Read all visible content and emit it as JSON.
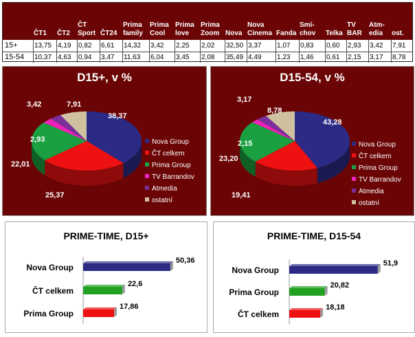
{
  "table": {
    "columns": [
      "ČT1",
      "ČT2",
      "ČT\nSport",
      "ČT24",
      "Prima\nfamily",
      "Prima\nCool",
      "Prima\nlove",
      "Prima\nZoom",
      "Nova",
      "Nova\nCinema",
      "Fanda",
      "Smí-\nchov",
      "Telka",
      "TV\nBAR",
      "Atm-\nedia",
      "ost."
    ],
    "rows": [
      {
        "label": "15+",
        "values": [
          "13,75",
          "4,19",
          "0,82",
          "6,61",
          "14,32",
          "3,42",
          "2,25",
          "2,02",
          "32,50",
          "3,37",
          "1,07",
          "0,83",
          "0,60",
          "2,93",
          "3,42",
          "7,91"
        ]
      },
      {
        "label": "15-54",
        "values": [
          "10,37",
          "4,63",
          "0,94",
          "3,47",
          "11,63",
          "6,04",
          "3,45",
          "2,08",
          "35,49",
          "4,49",
          "1,23",
          "1,46",
          "0,61",
          "2,15",
          "3,17",
          "8,78"
        ]
      }
    ]
  },
  "chart_data": [
    {
      "type": "pie",
      "title": "D15+, v %",
      "labels": [
        "Nova Group",
        "ČT celkem",
        "Prima Group",
        "TV Barrandov",
        "Atmedia",
        "ostatní"
      ],
      "values": [
        38.37,
        25.37,
        22.01,
        2.93,
        3.42,
        7.91
      ],
      "value_labels": [
        "38,37",
        "25,37",
        "22,01",
        "2,93",
        "3,42",
        "7,91"
      ],
      "colors": [
        "#2b2b86",
        "#ee1111",
        "#1aa040",
        "#ee22bb",
        "#7a2f9a",
        "#cfc1a0"
      ],
      "legend": "right"
    },
    {
      "type": "pie",
      "title": "D15-54, v %",
      "labels": [
        "Nova Group",
        "ČT celkem",
        "Prima Group",
        "TV Barrandov",
        "Atmedia",
        "ostatní"
      ],
      "values": [
        43.28,
        19.41,
        23.2,
        2.15,
        3.17,
        8.78
      ],
      "value_labels": [
        "43,28",
        "19,41",
        "23,20",
        "2,15",
        "3,17",
        "8,78"
      ],
      "colors": [
        "#2b2b86",
        "#ee1111",
        "#1aa040",
        "#ee22bb",
        "#7a2f9a",
        "#cfc1a0"
      ],
      "legend": "right"
    },
    {
      "type": "bar",
      "orientation": "horizontal",
      "title": "PRIME-TIME, D15+",
      "categories": [
        "Nova Group",
        "ČT celkem",
        "Prima Group"
      ],
      "values": [
        50.36,
        22.6,
        17.86
      ],
      "value_labels": [
        "50,36",
        "22,6",
        "17,86"
      ],
      "colors": [
        "#2b2b86",
        "#22a022",
        "#ee1111"
      ]
    },
    {
      "type": "bar",
      "orientation": "horizontal",
      "title": "PRIME-TIME, D15-54",
      "categories": [
        "Nova Group",
        "Prima Group",
        "ČT celkem"
      ],
      "values": [
        51.9,
        20.82,
        18.18
      ],
      "value_labels": [
        "51,9",
        "20,82",
        "18,18"
      ],
      "colors": [
        "#2b2b86",
        "#22a022",
        "#ee1111"
      ]
    }
  ]
}
